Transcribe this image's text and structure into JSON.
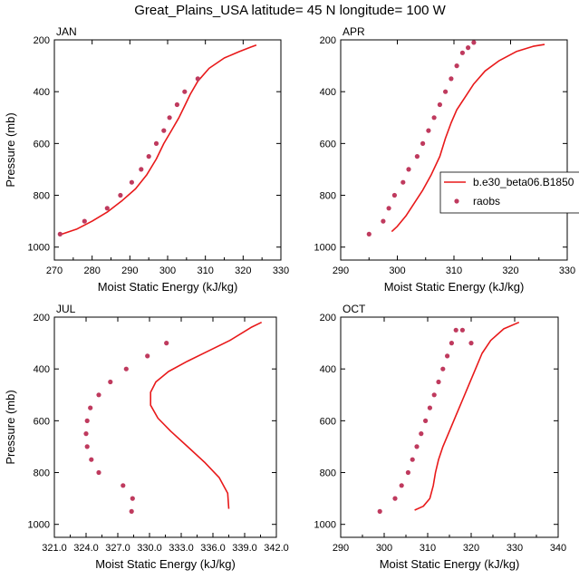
{
  "title": "Great_Plains_USA  latitude= 45 N longitude= 100 W",
  "colors": {
    "model": "#e8191a",
    "raobs": "#bf3a5e"
  },
  "legend": {
    "model_label": "b.e30_beta06.B1850",
    "raobs_label": "raobs",
    "placement": "right of APR panel"
  },
  "chart_data": [
    {
      "type": "line",
      "panel": "JAN",
      "title": "JAN",
      "xlabel": "Moist Static Energy (kJ/kg)",
      "ylabel": "Pressure (mb)",
      "xlim": [
        270,
        330
      ],
      "ylim": [
        1050,
        200
      ],
      "xticks": [
        270,
        280,
        290,
        300,
        310,
        320,
        330
      ],
      "xtick_labels": [
        "270",
        "280",
        "290",
        "300",
        "310",
        "320",
        "330"
      ],
      "yticks": [
        200,
        400,
        600,
        800,
        1000
      ],
      "ytick_labels": [
        "200",
        "400",
        "600",
        "800",
        "1000"
      ],
      "series": [
        {
          "name": "b.e30_beta06.B1850",
          "kind": "line",
          "x": [
            272,
            276,
            280,
            284,
            288,
            291.5,
            294.5,
            297,
            299,
            301,
            303,
            304.5,
            306,
            308,
            311,
            315,
            319,
            322,
            323.5
          ],
          "y": [
            950,
            930,
            900,
            865,
            820,
            775,
            720,
            660,
            600,
            550,
            500,
            455,
            410,
            360,
            310,
            270,
            245,
            228,
            220
          ]
        },
        {
          "name": "raobs",
          "kind": "scatter",
          "x": [
            271.5,
            278,
            284,
            287.5,
            290.5,
            293,
            295,
            297,
            299,
            300.5,
            302.5,
            304.5,
            308
          ],
          "y": [
            950,
            900,
            850,
            800,
            750,
            700,
            650,
            600,
            550,
            500,
            450,
            400,
            350
          ]
        }
      ]
    },
    {
      "type": "line",
      "panel": "APR",
      "title": "APR",
      "xlabel": "Moist Static Energy (kJ/kg)",
      "ylabel": "",
      "xlim": [
        290,
        330
      ],
      "ylim": [
        1050,
        200
      ],
      "xticks": [
        290,
        300,
        310,
        320,
        330
      ],
      "xtick_labels": [
        "290",
        "300",
        "310",
        "320",
        "330"
      ],
      "yticks": [
        200,
        400,
        600,
        800,
        1000
      ],
      "ytick_labels": [
        "200",
        "400",
        "600",
        "800",
        "1000"
      ],
      "series": [
        {
          "name": "b.e30_beta06.B1850",
          "kind": "line",
          "x": [
            299,
            300,
            301.5,
            303,
            304.5,
            306,
            307.5,
            308.5,
            309.5,
            310.5,
            312,
            313.5,
            315.5,
            318,
            321,
            324,
            326
          ],
          "y": [
            940,
            920,
            880,
            830,
            780,
            720,
            650,
            580,
            520,
            470,
            420,
            370,
            320,
            280,
            245,
            225,
            218
          ]
        },
        {
          "name": "raobs",
          "kind": "scatter",
          "x": [
            295,
            297.5,
            298.5,
            299.5,
            301,
            302,
            303.5,
            304.5,
            305.5,
            306.5,
            307.5,
            308.5,
            309.5,
            310.5,
            311.5,
            312.5,
            313.5
          ],
          "y": [
            950,
            900,
            850,
            800,
            750,
            700,
            650,
            600,
            550,
            500,
            450,
            400,
            350,
            300,
            250,
            230,
            210
          ]
        }
      ]
    },
    {
      "type": "line",
      "panel": "JUL",
      "title": "JUL",
      "xlabel": "Moist Static Energy (kJ/kg)",
      "ylabel": "Pressure (mb)",
      "xlim": [
        321,
        342
      ],
      "ylim": [
        1050,
        200
      ],
      "xticks": [
        321,
        324,
        327,
        330,
        333,
        336,
        339,
        342
      ],
      "xtick_labels": [
        "321.0",
        "324.0",
        "327.0",
        "330.0",
        "333.0",
        "336.0",
        "339.0",
        "342.0"
      ],
      "yticks": [
        200,
        400,
        600,
        800,
        1000
      ],
      "ytick_labels": [
        "200",
        "400",
        "600",
        "800",
        "1000"
      ],
      "series": [
        {
          "name": "b.e30_beta06.B1850",
          "kind": "line",
          "x": [
            337.5,
            337.4,
            336.6,
            335.2,
            333.6,
            332,
            330.8,
            330.1,
            330.1,
            330.6,
            331.8,
            333.6,
            335.6,
            337.6,
            339.6,
            340.6
          ],
          "y": [
            940,
            880,
            820,
            760,
            700,
            640,
            590,
            540,
            490,
            450,
            410,
            370,
            330,
            290,
            240,
            220
          ]
        },
        {
          "name": "raobs",
          "kind": "scatter",
          "x": [
            328.3,
            328.4,
            327.5,
            325.2,
            324.5,
            324.1,
            324.0,
            324.1,
            324.4,
            325.2,
            326.3,
            327.8,
            329.8,
            331.6
          ],
          "y": [
            950,
            900,
            850,
            800,
            750,
            700,
            650,
            600,
            550,
            500,
            450,
            400,
            350,
            300
          ]
        }
      ]
    },
    {
      "type": "line",
      "panel": "OCT",
      "title": "OCT",
      "xlabel": "Moist Static Energy (kJ/kg)",
      "ylabel": "",
      "xlim": [
        290,
        340
      ],
      "ylim": [
        1050,
        200
      ],
      "xticks": [
        290,
        300,
        310,
        320,
        330,
        340
      ],
      "xtick_labels": [
        "290",
        "300",
        "310",
        "320",
        "330",
        "340"
      ],
      "yticks": [
        200,
        400,
        600,
        800,
        1000
      ],
      "ytick_labels": [
        "200",
        "400",
        "600",
        "800",
        "1000"
      ],
      "series": [
        {
          "name": "b.e30_beta06.B1850",
          "kind": "line",
          "x": [
            307,
            309,
            310.5,
            311.3,
            311.8,
            312.5,
            313.5,
            315,
            316.5,
            318,
            319.5,
            321,
            322.5,
            324.5,
            327.5,
            331
          ],
          "y": [
            945,
            930,
            900,
            850,
            800,
            750,
            700,
            640,
            580,
            520,
            460,
            400,
            340,
            290,
            245,
            220
          ]
        },
        {
          "name": "raobs",
          "kind": "scatter",
          "x": [
            299,
            302.5,
            304,
            305.5,
            306.5,
            307.5,
            308.5,
            309.5,
            310.5,
            311.5,
            312.5,
            313.5,
            314.5,
            315.5,
            316.5,
            318,
            320
          ],
          "y": [
            950,
            900,
            850,
            800,
            750,
            700,
            650,
            600,
            550,
            500,
            450,
            400,
            350,
            300,
            250,
            250,
            300
          ]
        }
      ]
    }
  ]
}
